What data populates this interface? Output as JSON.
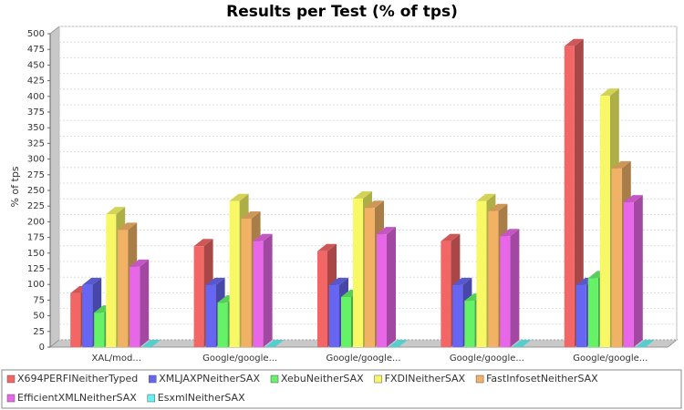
{
  "chart_data": {
    "type": "bar3d",
    "title": "Results per Test (% of tps)",
    "y_label": "% of tps",
    "categories": [
      "XAL/mod...",
      "Google/google...",
      "Google/google...",
      "Google/google...",
      "Google/google..."
    ],
    "series": [
      {
        "name": "X694PERFINeitherTyped",
        "color": "#f26666",
        "values": [
          86,
          161,
          153,
          169,
          480
        ]
      },
      {
        "name": "XMLJAXPNeitherSAX",
        "color": "#6666f2",
        "values": [
          99,
          99,
          99,
          99,
          99
        ]
      },
      {
        "name": "XebuNeitherSAX",
        "color": "#66f266",
        "values": [
          55,
          71,
          80,
          74,
          110
        ]
      },
      {
        "name": "FXDINeitherSAX",
        "color": "#f8f866",
        "values": [
          212,
          233,
          237,
          233,
          401
        ]
      },
      {
        "name": "FastInfosetNeitherSAX",
        "color": "#f2b266",
        "values": [
          187,
          205,
          222,
          217,
          285
        ]
      },
      {
        "name": "EfficientXMLNeitherSAX",
        "color": "#e866e8",
        "values": [
          128,
          169,
          180,
          177,
          231
        ]
      },
      {
        "name": "EsxmlNeitherSAX",
        "color": "#66f2f2",
        "values": [
          0,
          0,
          0,
          0,
          0
        ]
      }
    ],
    "ylim": [
      0,
      500
    ],
    "yticks": [
      0,
      25,
      50,
      75,
      100,
      125,
      150,
      175,
      200,
      225,
      250,
      275,
      300,
      325,
      350,
      375,
      400,
      425,
      450,
      475,
      500
    ],
    "grid": true
  }
}
